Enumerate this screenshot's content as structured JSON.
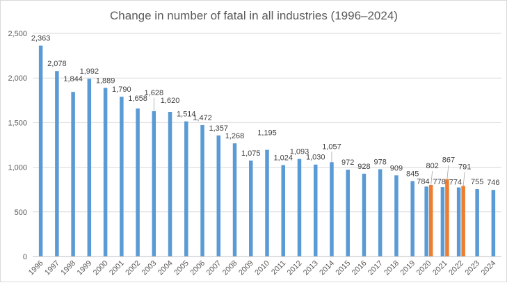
{
  "chart_data": {
    "type": "bar",
    "title": "Change in number of fatal in all industries (1996–2024)",
    "xlabel": "",
    "ylabel": "",
    "ylim": [
      0,
      2500
    ],
    "yticks": [
      "0",
      "500",
      "1,000",
      "1,500",
      "2,000",
      "2,500"
    ],
    "grid": true,
    "legend": "none",
    "colors": {
      "blue": "#5b9bd5",
      "orange": "#ed7d31",
      "grid": "#d9d9d9",
      "text": "#595959"
    },
    "categories": [
      "1996",
      "1997",
      "1998",
      "1999",
      "2000",
      "2001",
      "2002",
      "2003",
      "2004",
      "2005",
      "2006",
      "2007",
      "2008",
      "2009",
      "2010",
      "2011",
      "2012",
      "2013",
      "2014",
      "2015",
      "2016",
      "2017",
      "2018",
      "2019",
      "2020",
      "2021",
      "2022",
      "2023",
      "2024"
    ],
    "series": [
      {
        "values": [
          2363,
          2078,
          1844,
          1992,
          1889,
          1790,
          1658,
          1628,
          1620,
          1514,
          1472,
          1357,
          1268,
          1075,
          1195,
          1024,
          1093,
          1030,
          1057,
          972,
          928,
          978,
          909,
          845,
          784,
          778,
          774,
          755,
          746
        ],
        "labels": [
          "2,363",
          "2,078",
          "1,844",
          "1,992",
          "1,889",
          "1,790",
          "1,658",
          "1,628",
          "1,620",
          "1,514",
          "1,472",
          "1,357",
          "1,268",
          "1,075",
          "1,195",
          "1,024",
          "1,093",
          "1,030",
          "1,057",
          "972",
          "928",
          "978",
          "909",
          "845",
          "784",
          "778",
          "774",
          "755",
          "746"
        ]
      },
      {
        "values": [
          null,
          null,
          null,
          null,
          null,
          null,
          null,
          null,
          null,
          null,
          null,
          null,
          null,
          null,
          null,
          null,
          null,
          null,
          null,
          null,
          null,
          null,
          null,
          null,
          802,
          867,
          791,
          null,
          null
        ],
        "labels": [
          null,
          null,
          null,
          null,
          null,
          null,
          null,
          null,
          null,
          null,
          null,
          null,
          null,
          null,
          null,
          null,
          null,
          null,
          null,
          null,
          null,
          null,
          null,
          null,
          "802",
          "867",
          "791",
          null,
          null
        ]
      }
    ]
  }
}
